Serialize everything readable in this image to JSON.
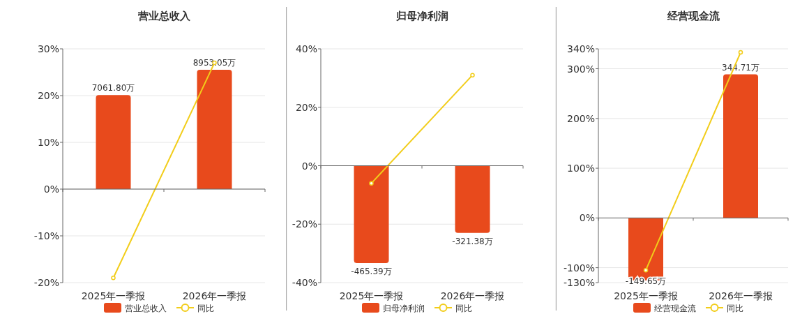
{
  "chart_data": [
    {
      "type": "bar",
      "title": "营业总收入",
      "categories": [
        "2025年一季报",
        "2026年一季报"
      ],
      "series": [
        {
          "name": "营业总收入",
          "axis": "y2",
          "color": "#e84a1c",
          "values": [
            7061.8,
            8953.05
          ],
          "value_labels": [
            "7061.80万",
            "8953.05万"
          ]
        },
        {
          "name": "同比",
          "type": "line",
          "color": "#f2cd1a",
          "marker": "circle",
          "values": [
            -19,
            27
          ]
        }
      ],
      "ylim": [
        -20,
        30
      ],
      "yticks": [
        {
          "value": -20,
          "label": "-20%"
        },
        {
          "value": -10,
          "label": "-10%"
        },
        {
          "value": 0,
          "label": "0%"
        },
        {
          "value": 10,
          "label": "10%"
        },
        {
          "value": 20,
          "label": "20%"
        },
        {
          "value": 30,
          "label": "30%"
        }
      ],
      "y2lim": [
        -7020,
        10530
      ],
      "grid": "y",
      "legend": "bottom"
    },
    {
      "type": "bar",
      "title": "归母净利润",
      "categories": [
        "2025年一季报",
        "2026年一季报"
      ],
      "series": [
        {
          "name": "归母净利润",
          "axis": "y2",
          "color": "#e84a1c",
          "values": [
            -465.39,
            -321.38
          ],
          "value_labels": [
            "-465.39万",
            "-321.38万"
          ]
        },
        {
          "name": "同比",
          "type": "line",
          "color": "#f2cd1a",
          "marker": "circle",
          "values": [
            -6,
            31
          ]
        }
      ],
      "ylim": [
        -40,
        40
      ],
      "yticks": [
        {
          "value": -40,
          "label": "-40%"
        },
        {
          "value": -20,
          "label": "-20%"
        },
        {
          "value": 0,
          "label": "0%"
        },
        {
          "value": 20,
          "label": "20%"
        },
        {
          "value": 40,
          "label": "40%"
        }
      ],
      "y2lim": [
        -559,
        559
      ],
      "grid": "y",
      "legend": "bottom"
    },
    {
      "type": "bar",
      "title": "经营现金流",
      "categories": [
        "2025年一季报",
        "2026年一季报"
      ],
      "series": [
        {
          "name": "经营现金流",
          "axis": "y2",
          "color": "#e84a1c",
          "values": [
            -149.65,
            344.71
          ],
          "value_labels": [
            "-149.65万",
            "344.71万"
          ]
        },
        {
          "name": "同比",
          "type": "line",
          "color": "#f2cd1a",
          "marker": "circle",
          "values": [
            -105,
            333
          ]
        }
      ],
      "ylim": [
        -130,
        340
      ],
      "yticks": [
        {
          "value": -130,
          "label": "-130%"
        },
        {
          "value": -100,
          "label": "-100%"
        },
        {
          "value": 0,
          "label": "0%"
        },
        {
          "value": 100,
          "label": "100%"
        },
        {
          "value": 200,
          "label": "200%"
        },
        {
          "value": 300,
          "label": "300%"
        },
        {
          "value": 340,
          "label": "340%"
        }
      ],
      "y2lim": [
        -155.2,
        406
      ],
      "grid": "y",
      "legend": "bottom"
    }
  ]
}
